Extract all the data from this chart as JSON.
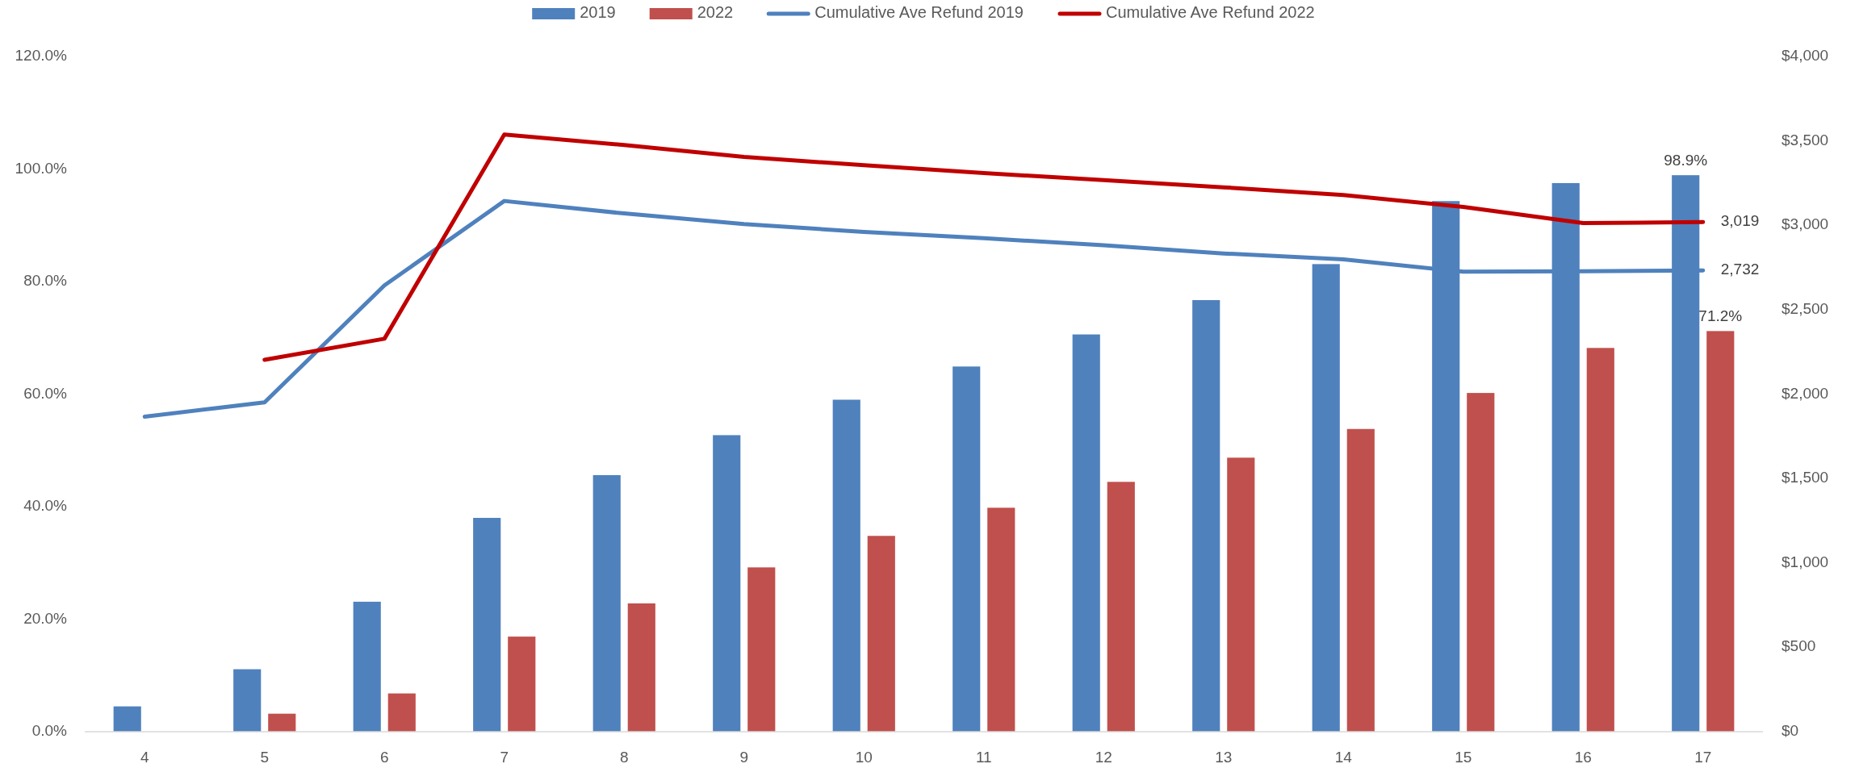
{
  "chart_data": {
    "type": "bar",
    "categories": [
      "4",
      "5",
      "6",
      "7",
      "8",
      "9",
      "10",
      "11",
      "12",
      "13",
      "14",
      "15",
      "16",
      "17"
    ],
    "series": [
      {
        "name": "2019",
        "color": "#4f81bd",
        "values": [
          4.5,
          11.1,
          23.1,
          38.0,
          45.6,
          52.7,
          59.0,
          64.9,
          70.6,
          76.7,
          83.1,
          94.3,
          97.5,
          98.9
        ],
        "value_labels": [
          null,
          null,
          null,
          null,
          null,
          null,
          null,
          null,
          null,
          null,
          null,
          null,
          null,
          "98.9%"
        ]
      },
      {
        "name": "2022",
        "color": "#c0504d",
        "values": [
          null,
          3.2,
          6.8,
          16.9,
          22.8,
          29.2,
          34.8,
          39.8,
          44.4,
          48.7,
          53.8,
          60.2,
          68.2,
          71.2
        ],
        "value_labels": [
          null,
          null,
          null,
          null,
          null,
          null,
          null,
          null,
          null,
          null,
          null,
          null,
          null,
          "71.2%"
        ]
      },
      {
        "name": "Cumulative Ave Refund 2019",
        "type": "line",
        "axis": "y2",
        "color": "#4f81bd",
        "values": [
          1866,
          1951,
          2644,
          3144,
          3070,
          3007,
          2961,
          2923,
          2882,
          2833,
          2798,
          2725,
          2728,
          2732
        ],
        "value_labels": [
          null,
          null,
          null,
          null,
          null,
          null,
          null,
          null,
          null,
          null,
          null,
          null,
          null,
          "2,732"
        ]
      },
      {
        "name": "Cumulative Ave Refund 2022",
        "type": "line",
        "axis": "y2",
        "color": "#c00000",
        "values": [
          null,
          2203,
          2328,
          3538,
          3475,
          3405,
          3356,
          3309,
          3268,
          3225,
          3179,
          3109,
          3013,
          3019
        ],
        "value_labels": [
          null,
          null,
          null,
          null,
          null,
          null,
          null,
          null,
          null,
          null,
          null,
          null,
          null,
          "3,019"
        ]
      }
    ],
    "ylim": [
      0,
      120
    ],
    "yticks": [
      {
        "value": 0,
        "label": "0.0%"
      },
      {
        "value": 20,
        "label": "20.0%"
      },
      {
        "value": 40,
        "label": "40.0%"
      },
      {
        "value": 60,
        "label": "60.0%"
      },
      {
        "value": 80,
        "label": "80.0%"
      },
      {
        "value": 100,
        "label": "100.0%"
      },
      {
        "value": 120,
        "label": "120.0%"
      }
    ],
    "y2lim": [
      0,
      4000
    ],
    "y2ticks": [
      {
        "value": 0,
        "label": "$0"
      },
      {
        "value": 500,
        "label": "$500"
      },
      {
        "value": 1000,
        "label": "$1,000"
      },
      {
        "value": 1500,
        "label": "$1,500"
      },
      {
        "value": 2000,
        "label": "$2,000"
      },
      {
        "value": 2500,
        "label": "$2,500"
      },
      {
        "value": 3000,
        "label": "$3,000"
      },
      {
        "value": 3500,
        "label": "$3,500"
      },
      {
        "value": 4000,
        "label": "$4,000"
      }
    ],
    "legend": "top"
  }
}
